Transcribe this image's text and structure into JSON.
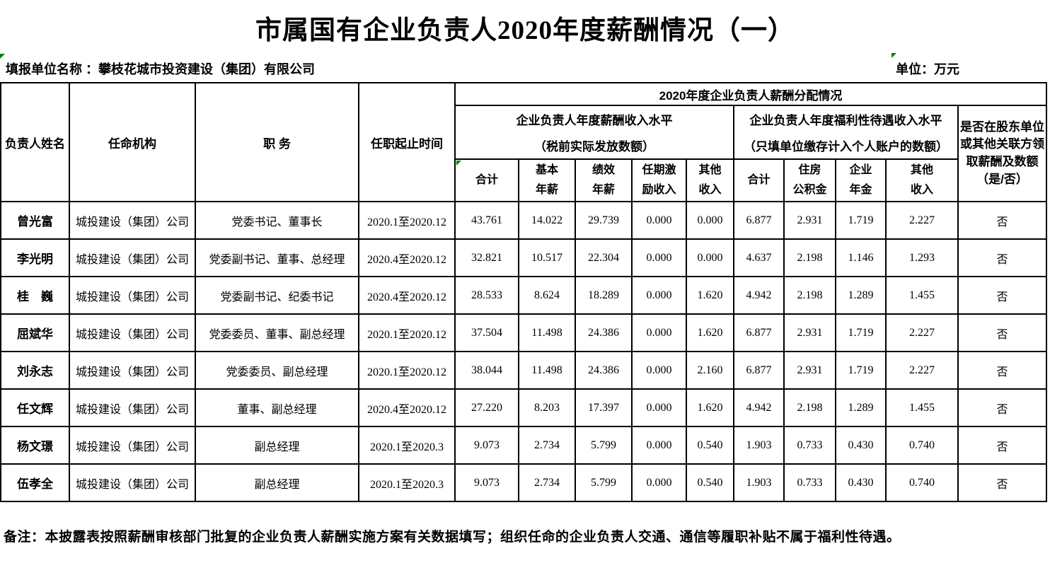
{
  "title": "市属国有企业负责人2020年度薪酬情况（一）",
  "meta": {
    "report_unit_label": "填报单位名称 ：",
    "report_unit_value": "攀枝花城市投资建设（集团）有限公司",
    "unit_label": "单位：万元"
  },
  "table": {
    "headers": {
      "name": "负责人姓名",
      "agency": "任命机构",
      "position": "职 务",
      "term": "任职起止时间",
      "distribution": "2020年度企业负责人薪酬分配情况",
      "salary_group_line1": "企业负责人年度薪酬收入水平",
      "salary_group_line2": "（税前实际发放数额）",
      "welfare_group_line1": "企业负责人年度福利性待遇收入水平",
      "welfare_group_line2": "（只填单位缴存计入个人账户的数额）",
      "related_party": "是否在股东单位\n或其他关联方领\n取薪酬及数额\n（是/否）",
      "salary_cols": [
        "合计",
        "基本\n年薪",
        "绩效\n年薪",
        "任期激\n励收入",
        "其他\n收入"
      ],
      "welfare_cols": [
        "合计",
        "住房\n公积金",
        "企业\n年金",
        "其他\n收入"
      ]
    },
    "rows": [
      {
        "name": "曾光富",
        "agency": "城投建设（集团）公司",
        "position": "党委书记、董事长",
        "term": "2020.1至2020.12",
        "salary": [
          "43.761",
          "14.022",
          "29.739",
          "0.000",
          "0.000"
        ],
        "welfare": [
          "6.877",
          "2.931",
          "1.719",
          "2.227"
        ],
        "related": "否"
      },
      {
        "name": "李光明",
        "agency": "城投建设（集团）公司",
        "position": "党委副书记、董事、总经理",
        "term": "2020.4至2020.12",
        "salary": [
          "32.821",
          "10.517",
          "22.304",
          "0.000",
          "0.000"
        ],
        "welfare": [
          "4.637",
          "2.198",
          "1.146",
          "1.293"
        ],
        "related": "否"
      },
      {
        "name": "桂　巍",
        "agency": "城投建设（集团）公司",
        "position": "党委副书记、纪委书记",
        "term": "2020.4至2020.12",
        "salary": [
          "28.533",
          "8.624",
          "18.289",
          "0.000",
          "1.620"
        ],
        "welfare": [
          "4.942",
          "2.198",
          "1.289",
          "1.455"
        ],
        "related": "否"
      },
      {
        "name": "屈斌华",
        "agency": "城投建设（集团）公司",
        "position": "党委委员、董事、副总经理",
        "term": "2020.1至2020.12",
        "salary": [
          "37.504",
          "11.498",
          "24.386",
          "0.000",
          "1.620"
        ],
        "welfare": [
          "6.877",
          "2.931",
          "1.719",
          "2.227"
        ],
        "related": "否"
      },
      {
        "name": "刘永志",
        "agency": "城投建设（集团）公司",
        "position": "党委委员、副总经理",
        "term": "2020.1至2020.12",
        "salary": [
          "38.044",
          "11.498",
          "24.386",
          "0.000",
          "2.160"
        ],
        "welfare": [
          "6.877",
          "2.931",
          "1.719",
          "2.227"
        ],
        "related": "否"
      },
      {
        "name": "任文辉",
        "agency": "城投建设（集团）公司",
        "position": "董事、副总经理",
        "term": "2020.4至2020.12",
        "salary": [
          "27.220",
          "8.203",
          "17.397",
          "0.000",
          "1.620"
        ],
        "welfare": [
          "4.942",
          "2.198",
          "1.289",
          "1.455"
        ],
        "related": "否"
      },
      {
        "name": "杨文璟",
        "agency": "城投建设（集团）公司",
        "position": "副总经理",
        "term": "2020.1至2020.3",
        "salary": [
          "9.073",
          "2.734",
          "5.799",
          "0.000",
          "0.540"
        ],
        "welfare": [
          "1.903",
          "0.733",
          "0.430",
          "0.740"
        ],
        "related": "否"
      },
      {
        "name": "伍孝全",
        "agency": "城投建设（集团）公司",
        "position": "副总经理",
        "term": "2020.1至2020.3",
        "salary": [
          "9.073",
          "2.734",
          "5.799",
          "0.000",
          "0.540"
        ],
        "welfare": [
          "1.903",
          "0.733",
          "0.430",
          "0.740"
        ],
        "related": "否"
      }
    ]
  },
  "footnote": "备注：本披露表按照薪酬审核部门批复的企业负责人薪酬实施方案有关数据填写；组织任命的企业负责人交通、通信等履职补贴不属于福利性待遇。"
}
